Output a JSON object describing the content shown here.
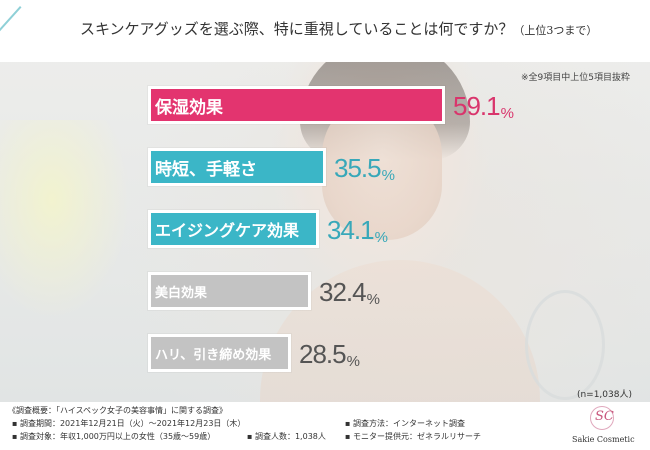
{
  "header": {
    "title": "スキンケアグッズを選ぶ際、特に重視していることは何ですか？",
    "title_suffix": "（上位3つまで）"
  },
  "note_top": "※全9項目中上位5項目抜粋",
  "sample_note": "(n=1,038人)",
  "chart_data": {
    "type": "bar",
    "orientation": "horizontal",
    "categories": [
      "保湿効果",
      "時短、手軽さ",
      "エイジングケア効果",
      "美白効果",
      "ハリ、引き締め効果"
    ],
    "values": [
      59.1,
      35.5,
      34.1,
      32.4,
      28.5
    ],
    "unit": "%",
    "colors": [
      "#e3346f",
      "#3bb6c7",
      "#3bb6c7",
      "#c3c3c3",
      "#c3c3c3"
    ],
    "value_colors": [
      "#d9356c",
      "#38a8b9",
      "#38a8b9",
      "#555555",
      "#555555"
    ]
  },
  "footer": {
    "survey_title": "《調査概要：「ハイスペック女子の美容事情」に関する調査》",
    "period": "調査期間：2021年12月21日（火）～2021年12月23日（木）",
    "method": "調査方法：インターネット調査",
    "target": "調査対象：年収1,000万円以上の女性（35歳～59歳）",
    "count": "調査人数：1,038人",
    "provider": "モニター提供元：ゼネラルリサーチ"
  },
  "logo": {
    "mark": "SC",
    "text": "Sakie Cosmetic"
  }
}
